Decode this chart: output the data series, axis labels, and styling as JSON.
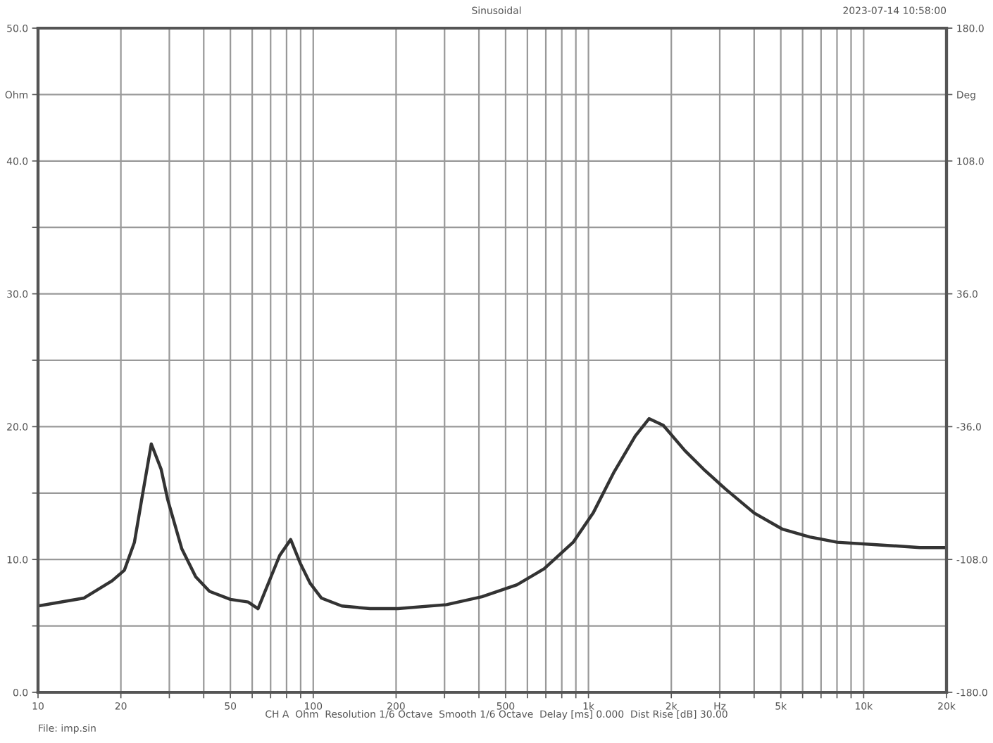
{
  "chart_data": {
    "type": "line",
    "title": "Sinusoidal",
    "annotations": [
      "2023-07-14 10:58:00",
      "CH A  Ohm  Resolution 1/6 Octave  Smooth 1/6 Octave  Delay [ms] 0.000  Dist Rise [dB] 30.00",
      "File: imp.sin"
    ],
    "log": "x",
    "grid": true,
    "marker": "none",
    "line_style": "solid",
    "xlim": [
      10,
      20000
    ],
    "xticks": [
      10,
      20,
      {
        "value": 30,
        "label": null
      },
      {
        "value": 40,
        "label": null
      },
      50,
      {
        "value": 60,
        "label": null
      },
      {
        "value": 70,
        "label": null
      },
      {
        "value": 80,
        "label": null
      },
      {
        "value": 90,
        "label": null
      },
      100,
      200,
      {
        "value": 300,
        "label": null
      },
      {
        "value": 400,
        "label": null
      },
      500,
      {
        "value": 600,
        "label": null
      },
      {
        "value": 700,
        "label": null
      },
      {
        "value": 800,
        "label": null
      },
      {
        "value": 900,
        "label": null
      },
      {
        "value": 1000,
        "label": "1k"
      },
      {
        "value": 2000,
        "label": "2k"
      },
      {
        "value": 3000,
        "label": "Hz"
      },
      {
        "value": 4000,
        "label": null
      },
      {
        "value": 5000,
        "label": "5k"
      },
      {
        "value": 6000,
        "label": null
      },
      {
        "value": 7000,
        "label": null
      },
      {
        "value": 8000,
        "label": null
      },
      {
        "value": 9000,
        "label": null
      },
      {
        "value": 10000,
        "label": "10k"
      },
      {
        "value": 20000,
        "label": "20k"
      }
    ],
    "ylim": [
      0,
      50
    ],
    "yticks": [
      {
        "value": 0,
        "label": "0.0"
      },
      {
        "value": 5,
        "label": null
      },
      {
        "value": 10,
        "label": "10.0"
      },
      {
        "value": 15,
        "label": null
      },
      {
        "value": 20,
        "label": "20.0"
      },
      {
        "value": 25,
        "label": null
      },
      {
        "value": 30,
        "label": "30.0"
      },
      {
        "value": 35,
        "label": null
      },
      {
        "value": 40,
        "label": "40.0"
      },
      {
        "value": 45,
        "label": "Ohm"
      },
      {
        "value": 50,
        "label": "50.0"
      }
    ],
    "y2lim": [
      -180,
      180
    ],
    "y2ticks": [
      {
        "value": -180,
        "label": "-180.0"
      },
      {
        "value": -108,
        "label": "-108.0"
      },
      {
        "value": -36,
        "label": "-36.0"
      },
      {
        "value": 36,
        "label": "36.0"
      },
      {
        "value": 108,
        "label": "108.0"
      },
      {
        "value": 144,
        "label": "Deg"
      },
      {
        "value": 180,
        "label": "180.0"
      }
    ],
    "series": [
      {
        "color": "#333333",
        "x": [
          10,
          14.7,
          18.6,
          20.6,
          22.4,
          23.8,
          25.8,
          28,
          29.6,
          33.3,
          37.4,
          42,
          50,
          58,
          63,
          75.5,
          82.8,
          89.8,
          97.5,
          107,
          127,
          161,
          203,
          305,
          410,
          550,
          690,
          880,
          1040,
          1240,
          1480,
          1660,
          1870,
          2240,
          2650,
          3150,
          4000,
          5050,
          6360,
          8000,
          11400,
          16000,
          20000
        ],
        "values": [
          6.5,
          7.1,
          8.4,
          9.2,
          11.3,
          14.5,
          18.7,
          16.8,
          14.5,
          10.8,
          8.7,
          7.6,
          7.0,
          6.8,
          6.3,
          10.3,
          11.5,
          9.7,
          8.2,
          7.1,
          6.5,
          6.3,
          6.3,
          6.6,
          7.2,
          8.1,
          9.3,
          11.3,
          13.5,
          16.6,
          19.3,
          20.6,
          20.1,
          18.2,
          16.7,
          15.3,
          13.5,
          12.3,
          11.7,
          11.3,
          11.1,
          10.9,
          10.9
        ]
      }
    ]
  }
}
